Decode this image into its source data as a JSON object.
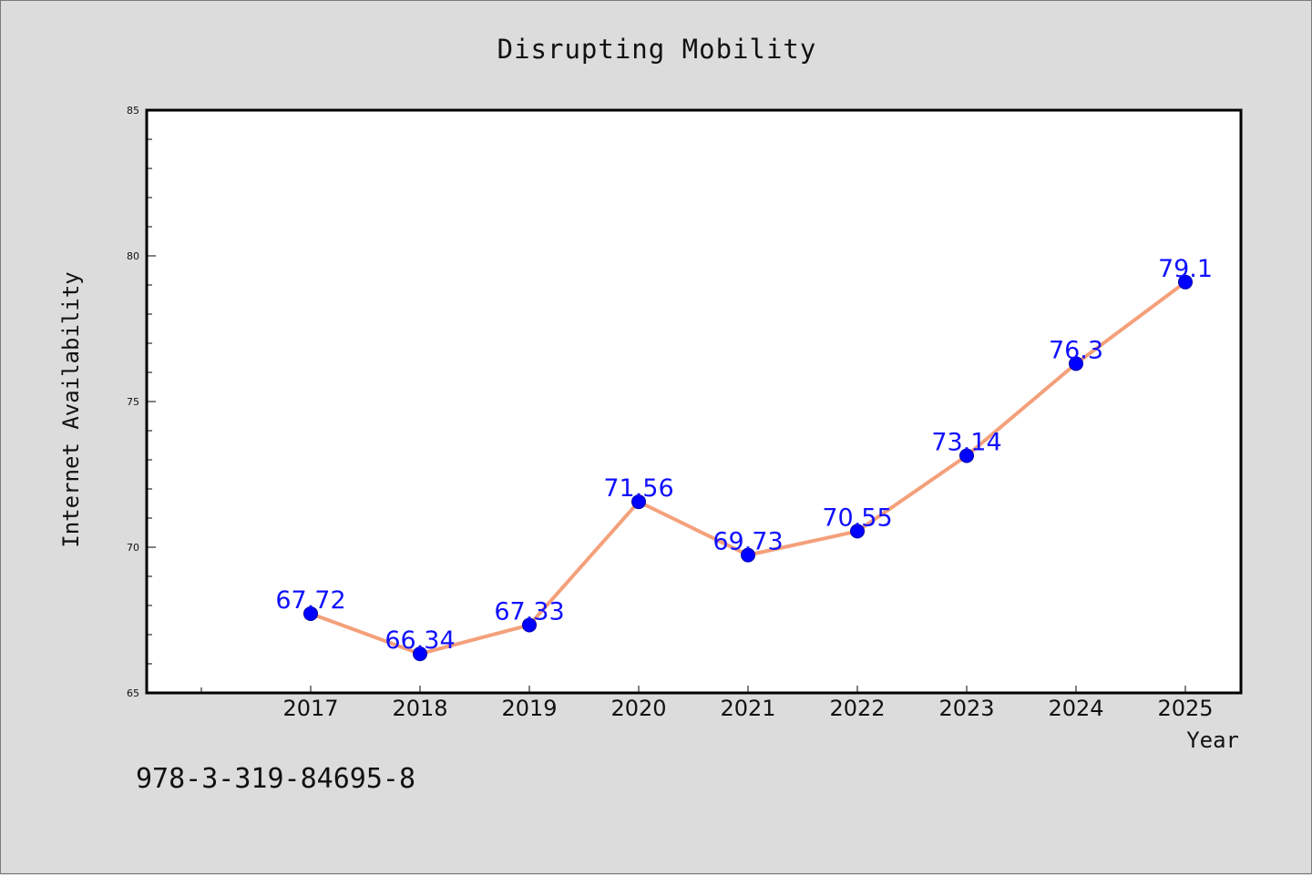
{
  "chart_data": {
    "type": "line",
    "title": "Disrupting Mobility",
    "xlabel": "Year",
    "ylabel": "Internet Availability",
    "categories": [
      "2017",
      "2018",
      "2019",
      "2020",
      "2021",
      "2022",
      "2023",
      "2024",
      "2025"
    ],
    "series": [
      {
        "values": [
          67.72,
          66.34,
          67.33,
          71.56,
          69.73,
          70.55,
          73.14,
          76.3,
          79.1
        ],
        "data_labels": [
          "67.72",
          "66.34",
          "67.33",
          "71.56",
          "69.73",
          "70.55",
          "73.14",
          "76.3",
          "79.1"
        ]
      }
    ],
    "ylim": [
      65,
      85
    ],
    "yticks": [
      "65",
      "70",
      "75",
      "80",
      "85"
    ],
    "grid": false,
    "legend": "none",
    "colors": {
      "line": "#f4a07a",
      "marker": "#0000ff",
      "label": "#1010ff",
      "plot_background": "#ffffff",
      "page_background": "#dcdcdc"
    }
  },
  "footer": {
    "text": "978-3-319-84695-8"
  }
}
